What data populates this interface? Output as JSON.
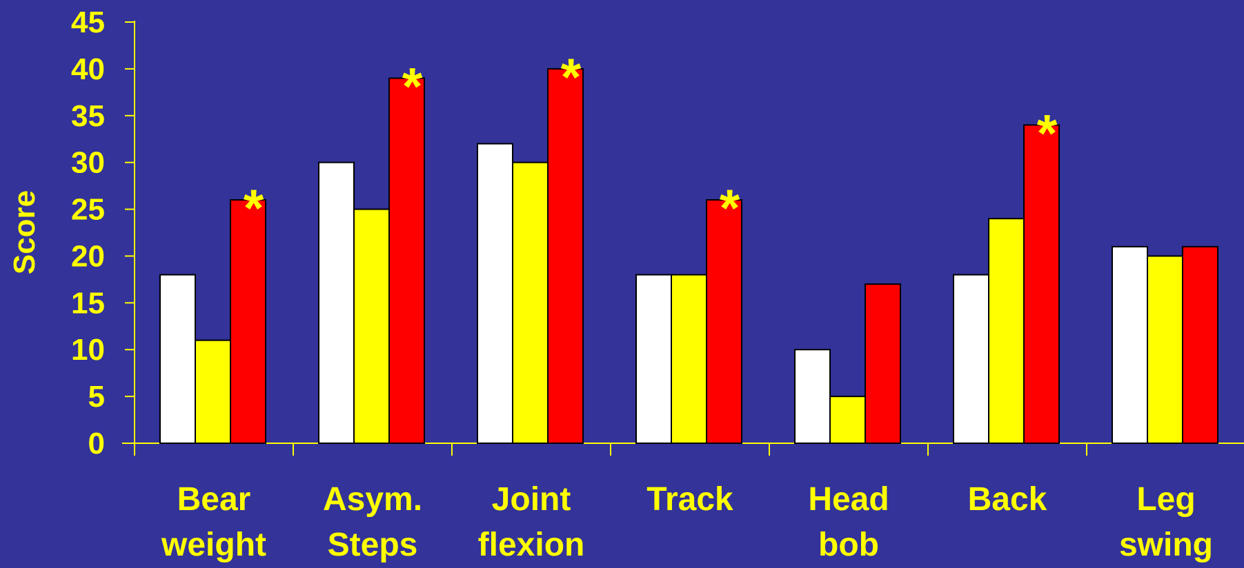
{
  "chart_data": {
    "type": "bar",
    "ylabel": "Score",
    "ylim": [
      0,
      45
    ],
    "yticks": [
      "0",
      "5",
      "10",
      "15",
      "20",
      "25",
      "30",
      "35",
      "40",
      "45"
    ],
    "categories": [
      [
        "Bear",
        "weight"
      ],
      [
        "Asym.",
        "Steps"
      ],
      [
        "Joint",
        "flexion"
      ],
      [
        "Track"
      ],
      [
        "Head",
        "bob"
      ],
      [
        "Back"
      ],
      [
        "Leg",
        "swing"
      ]
    ],
    "series": [
      {
        "color": "#FFFFFF",
        "values": [
          18,
          30,
          32,
          18,
          10,
          18,
          21
        ]
      },
      {
        "color": "#FFFF00",
        "values": [
          11,
          25,
          30,
          18,
          5,
          24,
          20
        ]
      },
      {
        "color": "#FF0000",
        "values": [
          26,
          39,
          40,
          26,
          17,
          34,
          21
        ]
      }
    ],
    "significance_marker": "*",
    "significant": [
      true,
      true,
      true,
      true,
      false,
      true,
      false
    ],
    "colors": {
      "background": "#333399",
      "text": "#FFFF00",
      "axis": "#FFFF00",
      "bar_outline": "#000000"
    }
  }
}
